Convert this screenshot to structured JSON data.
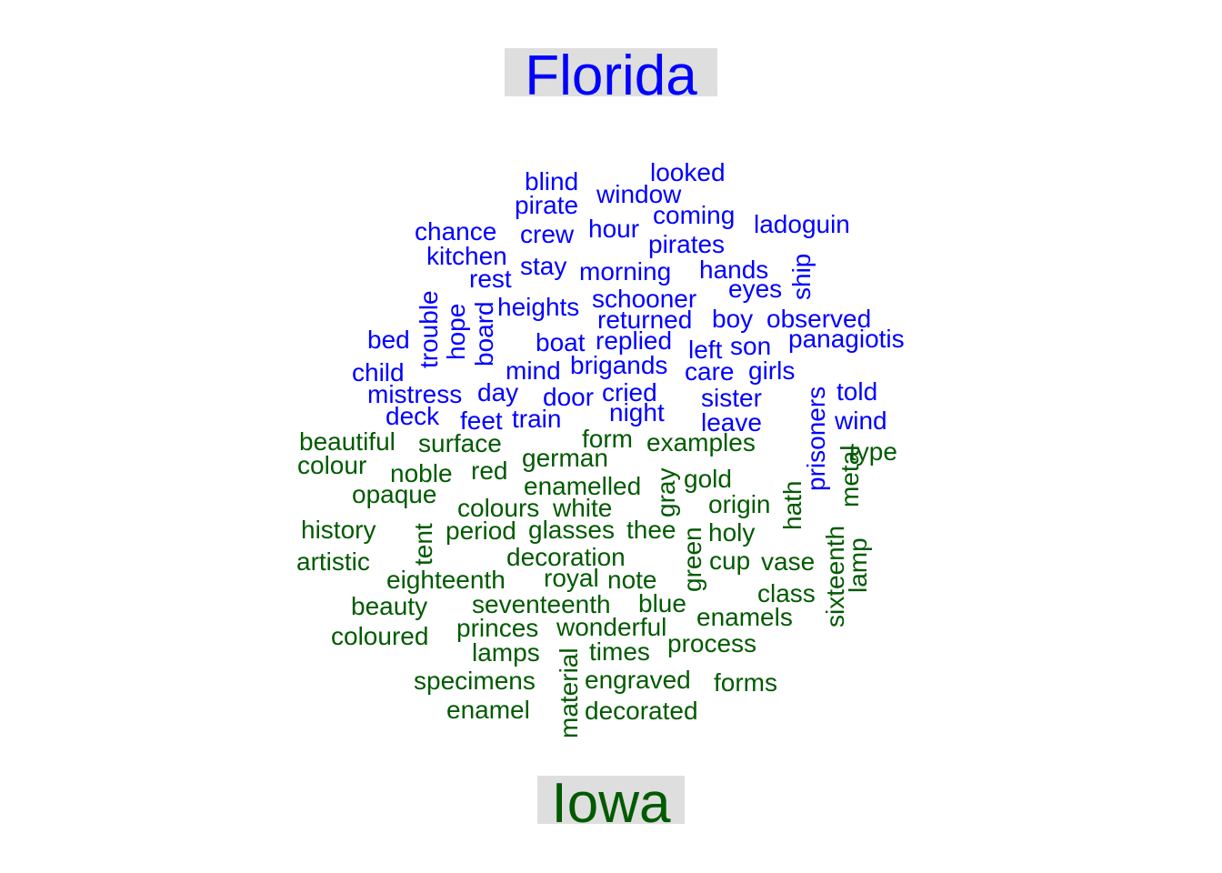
{
  "chart_data": {
    "type": "comparison-wordcloud",
    "groups": [
      {
        "name": "Florida",
        "color": "#0000ff",
        "words": [
          "blind",
          "looked",
          "window",
          "pirate",
          "coming",
          "ladoguin",
          "chance",
          "crew",
          "hour",
          "pirates",
          "kitchen",
          "stay",
          "morning",
          "hands",
          "ship",
          "rest",
          "eyes",
          "trouble",
          "hope",
          "board",
          "heights",
          "schooner",
          "returned",
          "boy",
          "observed",
          "bed",
          "boat",
          "replied",
          "left",
          "son",
          "panagiotis",
          "child",
          "mind",
          "brigands",
          "care",
          "girls",
          "mistress",
          "day",
          "door",
          "cried",
          "sister",
          "prisoners",
          "told",
          "deck",
          "feet",
          "train",
          "night",
          "leave",
          "wind"
        ]
      },
      {
        "name": "Iowa",
        "color": "#005a00",
        "words": [
          "beautiful",
          "surface",
          "form",
          "examples",
          "type",
          "colour",
          "german",
          "noble",
          "red",
          "enamelled",
          "gray",
          "gold",
          "metal",
          "opaque",
          "hath",
          "origin",
          "colours",
          "white",
          "history",
          "tent",
          "period",
          "glasses",
          "thee",
          "holy",
          "green",
          "sixteenth",
          "lamp",
          "artistic",
          "decoration",
          "cup",
          "vase",
          "eighteenth",
          "royal",
          "note",
          "class",
          "beauty",
          "seventeenth",
          "blue",
          "enamels",
          "coloured",
          "princes",
          "wonderful",
          "lamps",
          "material",
          "times",
          "process",
          "specimens",
          "engraved",
          "forms",
          "enamel",
          "decorated"
        ]
      }
    ]
  }
}
